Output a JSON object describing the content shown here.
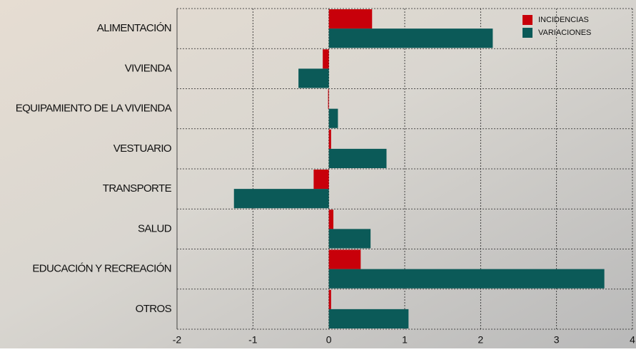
{
  "chart_data": {
    "type": "bar",
    "orientation": "horizontal",
    "categories": [
      "ALIMENTACIÓN",
      "VIVIENDA",
      "EQUIPAMIENTO DE LA VIVIENDA",
      "VESTUARIO",
      "TRANSPORTE",
      "SALUD",
      "EDUCACIÓN Y RECREACIÓN",
      "OTROS"
    ],
    "series": [
      {
        "name": "INCIDENCIAS",
        "color": "#c8000a",
        "values": [
          0.57,
          -0.08,
          -0.01,
          0.03,
          -0.2,
          0.06,
          0.42,
          0.03
        ]
      },
      {
        "name": "VARIACIONES",
        "color": "#0b5a58",
        "values": [
          2.16,
          -0.4,
          0.12,
          0.76,
          -1.25,
          0.55,
          3.63,
          1.05
        ]
      }
    ],
    "xlim": [
      -2,
      4
    ],
    "xticks": [
      -2,
      -1,
      0,
      1,
      2,
      3,
      4
    ],
    "grid": true,
    "legend": "top-right"
  }
}
